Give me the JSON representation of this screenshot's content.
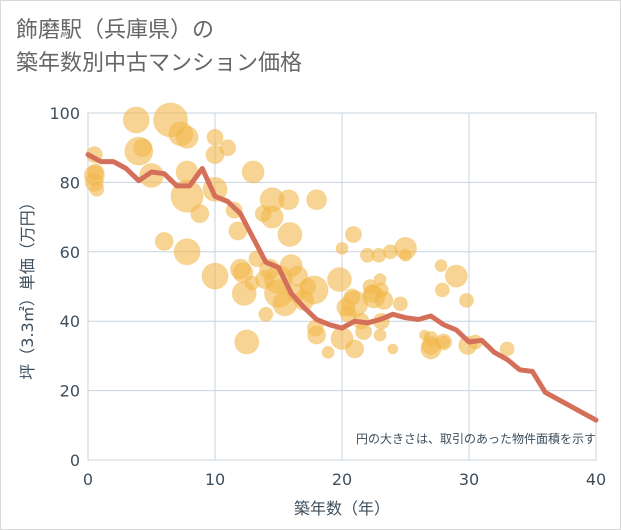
{
  "title_lines": [
    "飾磨駅（兵庫県）の",
    "築年数別中古マンション価格"
  ],
  "chart_data": {
    "type": "scatter",
    "xlabel": "築年数（年）",
    "ylabel": "坪（3.3㎡）単価（万円）",
    "xlim": [
      0,
      40
    ],
    "ylim": [
      0,
      100
    ],
    "x_ticks": [
      0,
      10,
      20,
      30,
      40
    ],
    "y_ticks": [
      0,
      20,
      40,
      60,
      80,
      100
    ],
    "grid": true,
    "note": "円の大きさは、取引のあった物件面積を示す",
    "colors": {
      "bubble": "#f2b84b",
      "line": "#d4705a",
      "grid": "#c8d3dd",
      "axis_text": "#3d4e5c"
    },
    "bubbles": [
      {
        "x": 0.5,
        "y": 88,
        "s": 8
      },
      {
        "x": 0.5,
        "y": 82,
        "s": 10
      },
      {
        "x": 0.5,
        "y": 80,
        "s": 9
      },
      {
        "x": 0.7,
        "y": 78,
        "s": 7
      },
      {
        "x": 0.6,
        "y": 83,
        "s": 8
      },
      {
        "x": 3.8,
        "y": 98,
        "s": 13
      },
      {
        "x": 4,
        "y": 89,
        "s": 14
      },
      {
        "x": 4.3,
        "y": 90,
        "s": 9
      },
      {
        "x": 5,
        "y": 82,
        "s": 12
      },
      {
        "x": 6,
        "y": 63,
        "s": 9
      },
      {
        "x": 6.5,
        "y": 98,
        "s": 17
      },
      {
        "x": 7.3,
        "y": 94,
        "s": 12
      },
      {
        "x": 7.8,
        "y": 76,
        "s": 16
      },
      {
        "x": 7.8,
        "y": 83,
        "s": 11
      },
      {
        "x": 7.8,
        "y": 93,
        "s": 11
      },
      {
        "x": 7.8,
        "y": 60,
        "s": 13
      },
      {
        "x": 8.8,
        "y": 71,
        "s": 9
      },
      {
        "x": 10,
        "y": 93,
        "s": 8
      },
      {
        "x": 10,
        "y": 88,
        "s": 9
      },
      {
        "x": 10,
        "y": 78,
        "s": 12
      },
      {
        "x": 10,
        "y": 53,
        "s": 13
      },
      {
        "x": 11,
        "y": 90,
        "s": 8
      },
      {
        "x": 11.5,
        "y": 72,
        "s": 8
      },
      {
        "x": 11.8,
        "y": 66,
        "s": 9
      },
      {
        "x": 12,
        "y": 55,
        "s": 10
      },
      {
        "x": 12.2,
        "y": 54,
        "s": 10
      },
      {
        "x": 12.3,
        "y": 48,
        "s": 12
      },
      {
        "x": 12.5,
        "y": 34,
        "s": 12
      },
      {
        "x": 12.9,
        "y": 51,
        "s": 7
      },
      {
        "x": 13,
        "y": 83,
        "s": 11
      },
      {
        "x": 13.3,
        "y": 58,
        "s": 8
      },
      {
        "x": 13.8,
        "y": 71,
        "s": 8
      },
      {
        "x": 13.9,
        "y": 52,
        "s": 9
      },
      {
        "x": 14.0,
        "y": 42,
        "s": 7
      },
      {
        "x": 14.3,
        "y": 55,
        "s": 10
      },
      {
        "x": 14.5,
        "y": 75,
        "s": 12
      },
      {
        "x": 14.5,
        "y": 70,
        "s": 11
      },
      {
        "x": 15,
        "y": 52,
        "s": 14
      },
      {
        "x": 15,
        "y": 48,
        "s": 14
      },
      {
        "x": 15.5,
        "y": 45,
        "s": 12
      },
      {
        "x": 15.8,
        "y": 75,
        "s": 10
      },
      {
        "x": 15.9,
        "y": 65,
        "s": 12
      },
      {
        "x": 16,
        "y": 56,
        "s": 11
      },
      {
        "x": 16.5,
        "y": 53,
        "s": 10
      },
      {
        "x": 16.4,
        "y": 48,
        "s": 9
      },
      {
        "x": 17,
        "y": 46,
        "s": 10
      },
      {
        "x": 17.3,
        "y": 50,
        "s": 8
      },
      {
        "x": 17.8,
        "y": 49,
        "s": 14
      },
      {
        "x": 18,
        "y": 75,
        "s": 10
      },
      {
        "x": 17.9,
        "y": 38,
        "s": 8
      },
      {
        "x": 18,
        "y": 36,
        "s": 9
      },
      {
        "x": 18.9,
        "y": 31,
        "s": 6
      },
      {
        "x": 19.8,
        "y": 52,
        "s": 12
      },
      {
        "x": 20,
        "y": 61,
        "s": 6
      },
      {
        "x": 20,
        "y": 35,
        "s": 11
      },
      {
        "x": 20.3,
        "y": 44,
        "s": 9
      },
      {
        "x": 20.5,
        "y": 42,
        "s": 8
      },
      {
        "x": 20.8,
        "y": 47,
        "s": 8
      },
      {
        "x": 21,
        "y": 32,
        "s": 9
      },
      {
        "x": 20.9,
        "y": 65,
        "s": 8
      },
      {
        "x": 21,
        "y": 45,
        "s": 13
      },
      {
        "x": 21.5,
        "y": 40,
        "s": 8
      },
      {
        "x": 21.7,
        "y": 37,
        "s": 8
      },
      {
        "x": 22,
        "y": 59,
        "s": 7
      },
      {
        "x": 22.2,
        "y": 50,
        "s": 7
      },
      {
        "x": 22.4,
        "y": 48,
        "s": 9
      },
      {
        "x": 22.5,
        "y": 47,
        "s": 11
      },
      {
        "x": 22.9,
        "y": 59,
        "s": 7
      },
      {
        "x": 23.1,
        "y": 49,
        "s": 7
      },
      {
        "x": 23.3,
        "y": 46,
        "s": 9
      },
      {
        "x": 23,
        "y": 52,
        "s": 6
      },
      {
        "x": 23.1,
        "y": 40,
        "s": 8
      },
      {
        "x": 23,
        "y": 36,
        "s": 6
      },
      {
        "x": 23.8,
        "y": 60,
        "s": 7
      },
      {
        "x": 25,
        "y": 61,
        "s": 11
      },
      {
        "x": 25,
        "y": 59,
        "s": 6
      },
      {
        "x": 24.6,
        "y": 45,
        "s": 7
      },
      {
        "x": 24,
        "y": 32,
        "s": 5
      },
      {
        "x": 26.5,
        "y": 36,
        "s": 5
      },
      {
        "x": 27,
        "y": 33,
        "s": 9
      },
      {
        "x": 27,
        "y": 32,
        "s": 10
      },
      {
        "x": 27,
        "y": 35,
        "s": 7
      },
      {
        "x": 27.8,
        "y": 56,
        "s": 6
      },
      {
        "x": 27.9,
        "y": 49,
        "s": 7
      },
      {
        "x": 28,
        "y": 34,
        "s": 8
      },
      {
        "x": 28,
        "y": 34,
        "s": 6
      },
      {
        "x": 29,
        "y": 53,
        "s": 11
      },
      {
        "x": 29.8,
        "y": 46,
        "s": 7
      },
      {
        "x": 29.9,
        "y": 33,
        "s": 9
      },
      {
        "x": 30.5,
        "y": 34,
        "s": 7
      },
      {
        "x": 33,
        "y": 32,
        "s": 7
      }
    ],
    "trend_line": [
      [
        0,
        88
      ],
      [
        1,
        86
      ],
      [
        2,
        86
      ],
      [
        3,
        84
      ],
      [
        4,
        80.5
      ],
      [
        5,
        83
      ],
      [
        6,
        82.5
      ],
      [
        7,
        79
      ],
      [
        8,
        79
      ],
      [
        9,
        84
      ],
      [
        10,
        76
      ],
      [
        11,
        74.5
      ],
      [
        12,
        71
      ],
      [
        13,
        64
      ],
      [
        14,
        57
      ],
      [
        15,
        55.5
      ],
      [
        16,
        48
      ],
      [
        17,
        44
      ],
      [
        18,
        40.5
      ],
      [
        19,
        39
      ],
      [
        20,
        38
      ],
      [
        21,
        40
      ],
      [
        22,
        39.5
      ],
      [
        23,
        40.5
      ],
      [
        24,
        42
      ],
      [
        25,
        41
      ],
      [
        26,
        40.5
      ],
      [
        27,
        41.5
      ],
      [
        28,
        39
      ],
      [
        29,
        37.5
      ],
      [
        30,
        34
      ],
      [
        31,
        34.5
      ],
      [
        32,
        31
      ],
      [
        33,
        29
      ],
      [
        34,
        26
      ],
      [
        35,
        25.5
      ],
      [
        36,
        19.5
      ],
      [
        37,
        17.5
      ],
      [
        38,
        15.5
      ],
      [
        39,
        13.5
      ],
      [
        40,
        11.5
      ]
    ]
  }
}
